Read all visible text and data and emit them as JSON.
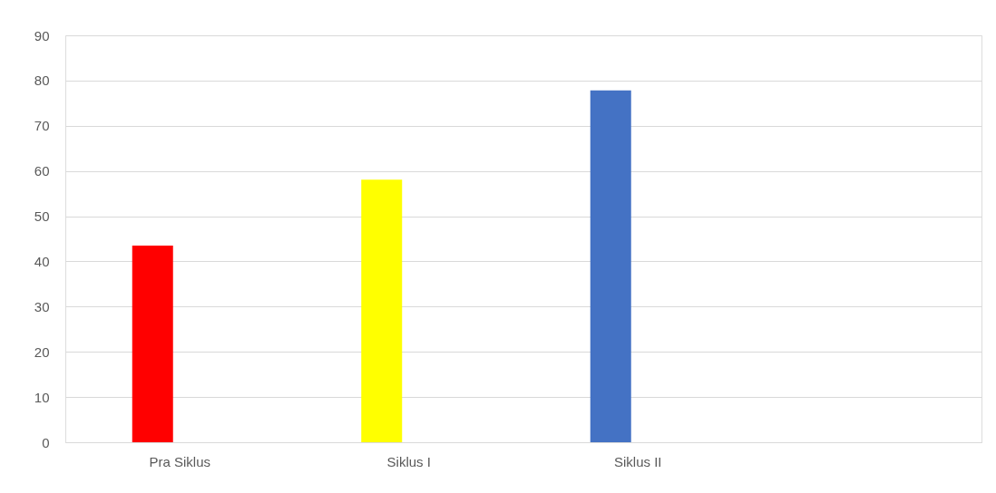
{
  "chart_data": {
    "type": "bar",
    "categories": [
      "Pra Siklus",
      "Siklus I",
      "Siklus II",
      null
    ],
    "values": [
      43.5,
      58.1,
      77.8,
      null
    ],
    "colors": [
      "#ff0000",
      "#ffff00",
      "#4472c4",
      "#ffffff"
    ],
    "ylim": [
      0,
      90
    ],
    "yticks": [
      0,
      10,
      20,
      30,
      40,
      50,
      60,
      70,
      80,
      90
    ],
    "grid": "y",
    "legend": false
  }
}
